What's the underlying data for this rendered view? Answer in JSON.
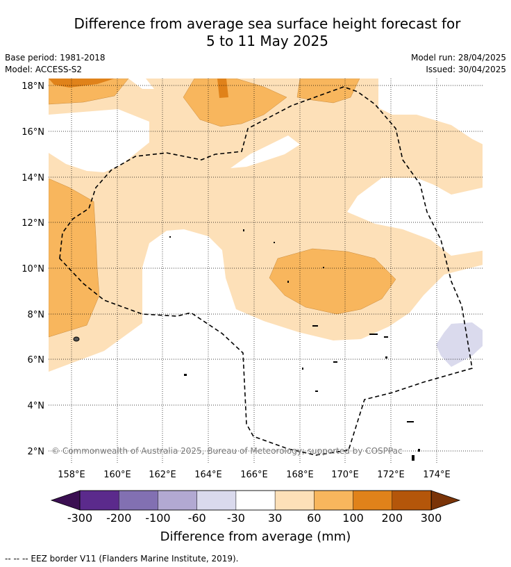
{
  "title_line1": "Difference from average sea surface height forecast for",
  "title_line2": "5 to 11 May 2025",
  "meta_left": [
    "Base period: 1981-2018",
    "Model: ACCESS-S2"
  ],
  "meta_right": [
    "Model run: 28/04/2025",
    "Issued: 30/04/2025"
  ],
  "lat_labels": [
    "18°N",
    "16°N",
    "14°N",
    "12°N",
    "10°N",
    "8°N",
    "6°N",
    "4°N",
    "2°N"
  ],
  "lon_labels": [
    "158°E",
    "160°E",
    "162°E",
    "164°E",
    "166°E",
    "168°E",
    "170°E",
    "172°E",
    "174°E"
  ],
  "copyright": "© Commonwealth of Australia 2025, Bureau of Meteorology; supported by COSPPac",
  "colorbar": {
    "ticks": [
      "-300",
      "-200",
      "-100",
      "-60",
      "-30",
      "30",
      "60",
      "100",
      "200",
      "300"
    ],
    "colors": [
      "#3b0f52",
      "#5b2a8c",
      "#8270b2",
      "#b2a9d2",
      "#dadaed",
      "#ffffff",
      "#fde0b8",
      "#f8b65d",
      "#e0821a",
      "#b4560a",
      "#7a3408"
    ],
    "label": "Difference from average (mm)"
  },
  "footnote": "--  --  -- EEZ border V11 (Flanders Marine Institute, 2019)."
}
